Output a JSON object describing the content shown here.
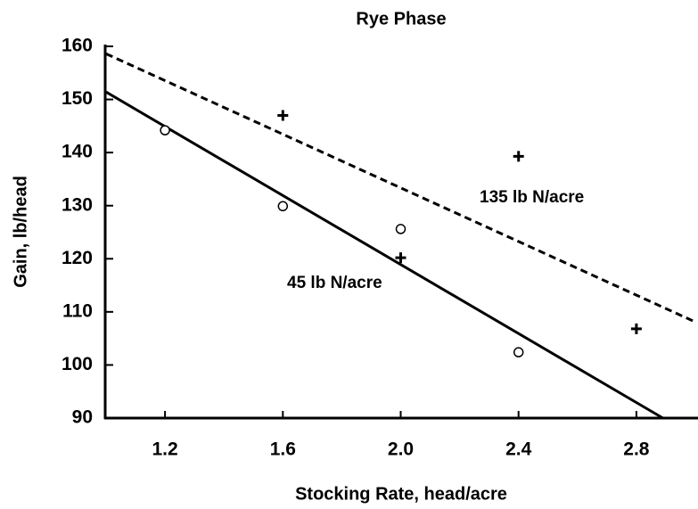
{
  "chart_data": {
    "type": "scatter",
    "title": "Rye Phase",
    "x_label": "Stocking Rate, head/acre",
    "y_label": "Gain, lb/head",
    "xlim": [
      1,
      3
    ],
    "xticks": [
      1.2,
      1.6,
      {
        "value": 2,
        "label": "2.0"
      },
      2.4,
      2.8
    ],
    "ylim": [
      90,
      160
    ],
    "yticks": [
      90,
      100,
      110,
      120,
      130,
      140,
      150,
      160
    ],
    "grid": false,
    "color": "#000000",
    "series": [
      {
        "name": "45 lb N/acre",
        "marker": "circle",
        "line_style": "solid",
        "x": [
          1.2,
          1.6,
          2.0,
          2.4
        ],
        "values": [
          144.2,
          129.9,
          125.6,
          102.4
        ],
        "fit": {
          "x": [
            1.0,
            2.89
          ],
          "y": [
            151.4,
            90
          ]
        }
      },
      {
        "name": "135 lb N/acre",
        "marker": "plus",
        "line_style": "dashed",
        "x": [
          1.6,
          2.0,
          2.4,
          2.8
        ],
        "values": [
          147.0,
          120.2,
          139.3,
          106.8
        ],
        "fit": {
          "x": [
            1.0,
            3.0
          ],
          "y": [
            158.6,
            108.1
          ]
        }
      }
    ]
  }
}
